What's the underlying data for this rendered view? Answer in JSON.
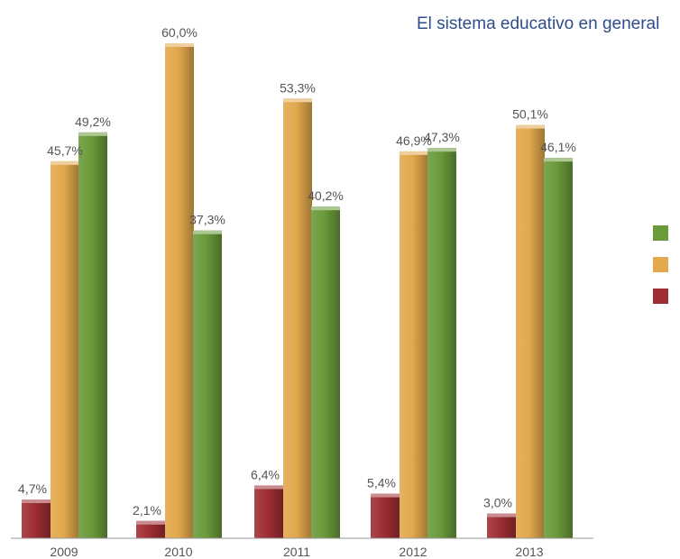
{
  "header": {
    "title": "El sistema educativo en general"
  },
  "chart_data": {
    "type": "bar",
    "categories": [
      "2009",
      "2010",
      "2011",
      "2012",
      "2013"
    ],
    "ylim": [
      0,
      66
    ],
    "grid": false,
    "series": [
      {
        "color": "#9e2e33",
        "values": [
          4.7,
          2.1,
          6.4,
          5.4,
          3.0
        ],
        "labels": [
          "4,7%",
          "2,1%",
          "6,4%",
          "5,4%",
          "3,0%"
        ]
      },
      {
        "color": "#e2a84c",
        "values": [
          45.7,
          60.0,
          53.3,
          46.9,
          50.1
        ],
        "labels": [
          "45,7%",
          "60,0%",
          "53,3%",
          "46,9%",
          "50,1%"
        ]
      },
      {
        "color": "#6a9a3a",
        "values": [
          49.2,
          37.3,
          40.2,
          47.3,
          46.1
        ],
        "labels": [
          "49,2%",
          "37,3%",
          "40,2%",
          "47,3%",
          "46,1%"
        ]
      }
    ],
    "legend": {
      "placement": "right",
      "entries": [
        {
          "color": "#6a9a3a"
        },
        {
          "color": "#e2a84c"
        },
        {
          "color": "#9e2e33"
        }
      ]
    }
  }
}
